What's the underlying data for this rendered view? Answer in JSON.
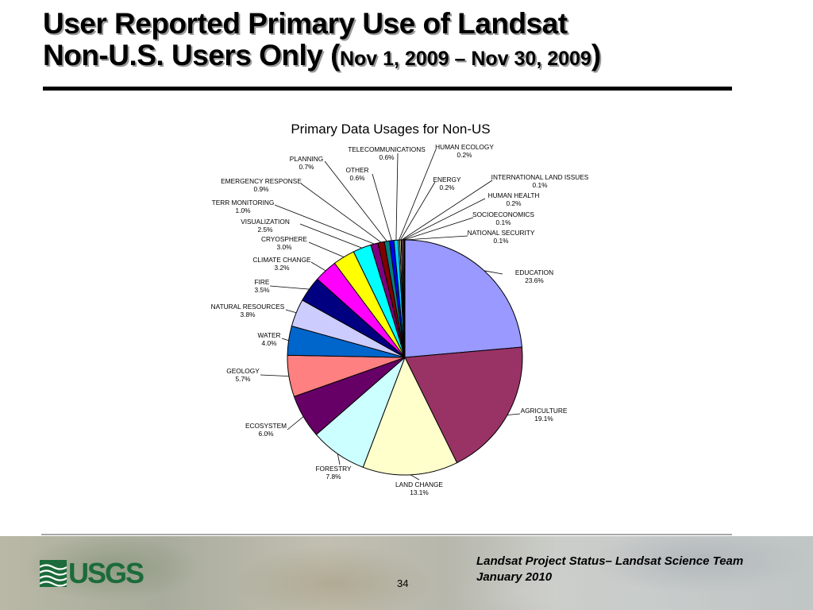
{
  "slide": {
    "title_line1": "User Reported Primary Use of Landsat",
    "title_line2": "Non-U.S. Users Only (",
    "title_dates": "Nov 1, 2009 – Nov 30, 2009",
    "title_close": ")"
  },
  "footer": {
    "logo_text": "USGS",
    "page_number": "34",
    "line1": "Landsat Project Status– Landsat Science Team",
    "line2": "January 2010"
  },
  "chart_data": {
    "type": "pie",
    "title": "Primary Data Usages for Non-US",
    "slices": [
      {
        "label": "EDUCATION",
        "pct": "23.6%",
        "value": 23.6,
        "color": "#9999ff"
      },
      {
        "label": "AGRICULTURE",
        "pct": "19.1%",
        "value": 19.1,
        "color": "#993366"
      },
      {
        "label": "LAND CHANGE",
        "pct": "13.1%",
        "value": 13.1,
        "color": "#ffffcc"
      },
      {
        "label": "FORESTRY",
        "pct": "7.8%",
        "value": 7.8,
        "color": "#ccffff"
      },
      {
        "label": "ECOSYSTEM",
        "pct": "6.0%",
        "value": 6.0,
        "color": "#660066"
      },
      {
        "label": "GEOLOGY",
        "pct": "5.7%",
        "value": 5.7,
        "color": "#ff8080"
      },
      {
        "label": "WATER",
        "pct": "4.0%",
        "value": 4.0,
        "color": "#0066cc"
      },
      {
        "label": "NATURAL RESOURCES",
        "pct": "3.8%",
        "value": 3.8,
        "color": "#ccccff"
      },
      {
        "label": "FIRE",
        "pct": "3.5%",
        "value": 3.5,
        "color": "#000080"
      },
      {
        "label": "CLIMATE CHANGE",
        "pct": "3.2%",
        "value": 3.2,
        "color": "#ff00ff"
      },
      {
        "label": "CRYOSPHERE",
        "pct": "3.0%",
        "value": 3.0,
        "color": "#ffff00"
      },
      {
        "label": "VISUALIZATION",
        "pct": "2.5%",
        "value": 2.5,
        "color": "#00ffff"
      },
      {
        "label": "TERR MONITORING",
        "pct": "1.0%",
        "value": 1.0,
        "color": "#800080"
      },
      {
        "label": "EMERGENCY RESPONSE",
        "pct": "0.9%",
        "value": 0.9,
        "color": "#800000"
      },
      {
        "label": "PLANNING",
        "pct": "0.7%",
        "value": 0.7,
        "color": "#008080"
      },
      {
        "label": "OTHER",
        "pct": "0.6%",
        "value": 0.6,
        "color": "#0000ff"
      },
      {
        "label": "TELECOMMUNICATIONS",
        "pct": "0.6%",
        "value": 0.6,
        "color": "#00ccff"
      },
      {
        "label": "HUMAN ECOLOGY",
        "pct": "0.2%",
        "value": 0.2,
        "color": "#ccffcc"
      },
      {
        "label": "ENERGY",
        "pct": "0.2%",
        "value": 0.2,
        "color": "#ffff99"
      },
      {
        "label": "INTERNATIONAL LAND ISSUES",
        "pct": "0.1%",
        "value": 0.1,
        "color": "#99ccff"
      },
      {
        "label": "HUMAN HEALTH",
        "pct": "0.2%",
        "value": 0.2,
        "color": "#ff99cc"
      },
      {
        "label": "SOCIOECONOMICS",
        "pct": "0.1%",
        "value": 0.1,
        "color": "#cc99ff"
      },
      {
        "label": "NATIONAL SECURITY",
        "pct": "0.1%",
        "value": 0.1,
        "color": "#ffcc99"
      }
    ]
  }
}
